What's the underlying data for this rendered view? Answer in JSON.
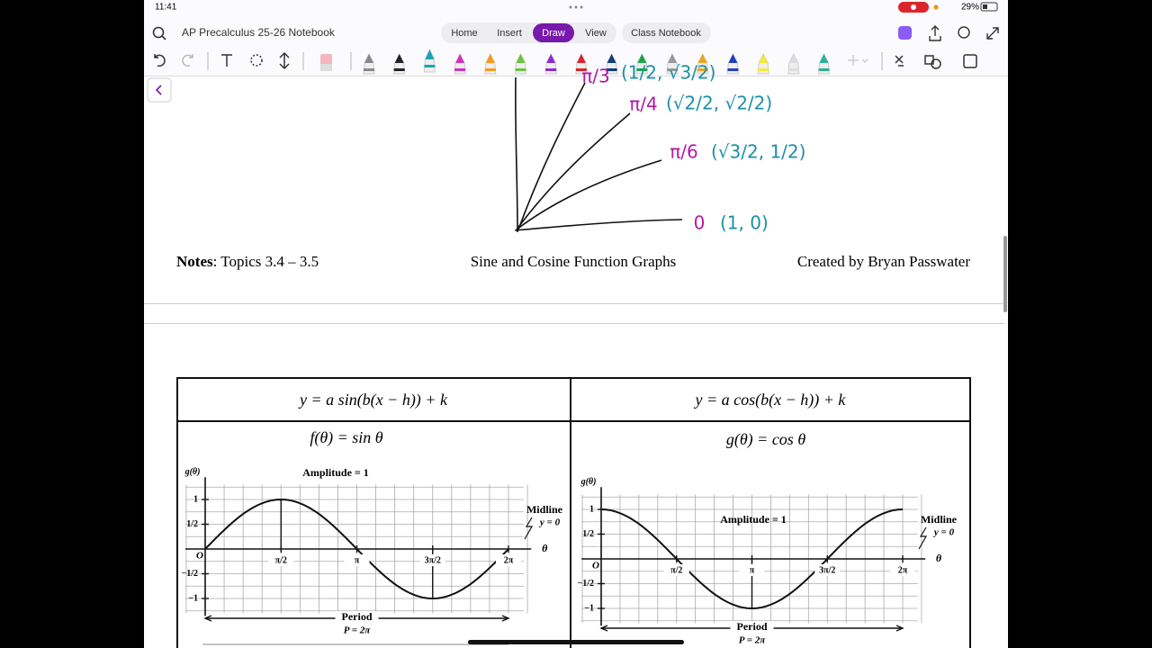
{
  "status_bar": {
    "time": "11:41",
    "battery": "29%"
  },
  "toolbar": {
    "notebook_title": "AP Precalculus 25-26 Notebook",
    "tabs": [
      "Home",
      "Insert",
      "Draw",
      "View",
      "Class Notebook"
    ],
    "active_tab": "Draw"
  },
  "handwriting": [
    {
      "angle": "π/3",
      "point": "(1/2, √3/2)"
    },
    {
      "angle": "π/4",
      "point": "(√2/2, √2/2)"
    },
    {
      "angle": "π/6",
      "point": "(√3/2, 1/2)"
    },
    {
      "angle": "0",
      "point": "(1, 0)"
    }
  ],
  "notes_header": {
    "label": "Notes",
    "topics": ": Topics 3.4 – 3.5",
    "title": "Sine and Cosine Function Graphs",
    "author": "Created by Bryan Passwater"
  },
  "table": {
    "headers": [
      "y = a sin(b(x − h)) + k",
      "y = a cos(b(x − h)) + k"
    ],
    "graphs": [
      {
        "function": "sin",
        "title": "f(θ) = sin θ",
        "y_axis_label": "g(θ)",
        "amplitude_label": "Amplitude = 1",
        "midline_label": "Midline",
        "midline_equation": "y = 0",
        "x_axis_label": "θ",
        "origin_label": "O",
        "period_label": "Period",
        "period_equation": "P = 2π",
        "yticks": [
          {
            "value": 1,
            "label": "1"
          },
          {
            "value": 0.5,
            "label": "1/2"
          },
          {
            "value": -0.5,
            "label": "−1/2"
          },
          {
            "value": -1,
            "label": "−1"
          }
        ],
        "xticks": [
          {
            "value": 0.5,
            "label": "π/2"
          },
          {
            "value": 1,
            "label": "π"
          },
          {
            "value": 1.5,
            "label": "3π/2"
          },
          {
            "value": 2,
            "label": "2π"
          }
        ]
      },
      {
        "function": "cos",
        "title": "g(θ) = cos θ",
        "y_axis_label": "g(θ)",
        "amplitude_label": "Amplitude = 1",
        "midline_label": "Midline",
        "midline_equation": "y = 0",
        "x_axis_label": "θ",
        "origin_label": "O",
        "period_label": "Period",
        "period_equation": "P = 2π",
        "yticks": [
          {
            "value": 1,
            "label": "1"
          },
          {
            "value": 0.5,
            "label": "1/2"
          },
          {
            "value": -0.5,
            "label": "−1/2"
          },
          {
            "value": -1,
            "label": "−1"
          }
        ],
        "xticks": [
          {
            "value": 0.5,
            "label": "π/2"
          },
          {
            "value": 1,
            "label": "π"
          },
          {
            "value": 1.5,
            "label": "3π/2"
          },
          {
            "value": 2,
            "label": "2π"
          }
        ]
      }
    ]
  }
}
